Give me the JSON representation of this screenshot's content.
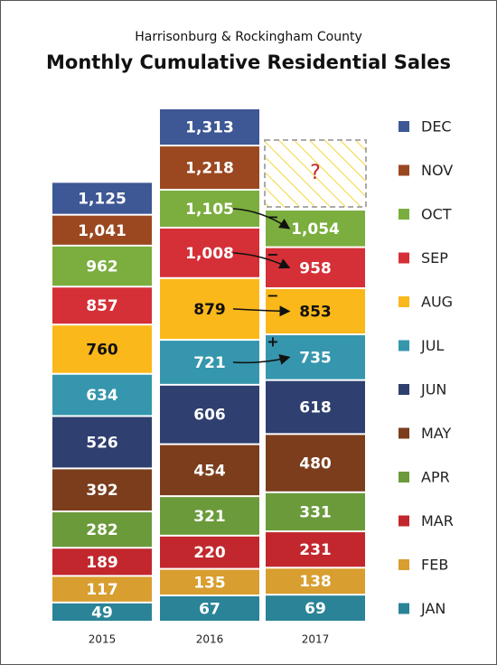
{
  "chart_data": {
    "type": "bar",
    "subtitle": "Harrisonburg & Rockingham County",
    "title": "Monthly Cumulative Residential Sales",
    "categories": [
      "2015",
      "2016",
      "2017"
    ],
    "series": [
      {
        "name": "JAN",
        "color": "#2a8397",
        "values": [
          49,
          67,
          69
        ]
      },
      {
        "name": "FEB",
        "color": "#d89e2f",
        "values": [
          117,
          135,
          138
        ]
      },
      {
        "name": "MAR",
        "color": "#c1272d",
        "values": [
          189,
          220,
          231
        ]
      },
      {
        "name": "APR",
        "color": "#6b9a3b",
        "values": [
          282,
          321,
          331
        ]
      },
      {
        "name": "MAY",
        "color": "#7b3d1c",
        "values": [
          392,
          454,
          480
        ]
      },
      {
        "name": "JUN",
        "color": "#2f3f6f",
        "values": [
          526,
          606,
          618
        ]
      },
      {
        "name": "JUL",
        "color": "#3596ad",
        "values": [
          634,
          721,
          735
        ]
      },
      {
        "name": "AUG",
        "color": "#fbb81a",
        "values": [
          760,
          879,
          853
        ]
      },
      {
        "name": "SEP",
        "color": "#d52f37",
        "values": [
          857,
          1008,
          958
        ],
        "value_labels": [
          "857",
          "1,008",
          "958"
        ]
      },
      {
        "name": "OCT",
        "color": "#7bae3e",
        "values": [
          962,
          1105,
          1054
        ],
        "value_labels": [
          "962",
          "1,105",
          "1,054"
        ]
      },
      {
        "name": "NOV",
        "color": "#9b4821",
        "values": [
          1041,
          1218,
          null
        ],
        "value_labels": [
          "1,041",
          "1,218",
          null
        ]
      },
      {
        "name": "DEC",
        "color": "#3e5795",
        "values": [
          1125,
          1313,
          null
        ],
        "value_labels": [
          "1,125",
          "1,313",
          null
        ]
      }
    ],
    "placeholder": "?",
    "change_marks": [
      "−",
      "−",
      "−",
      "+"
    ]
  }
}
